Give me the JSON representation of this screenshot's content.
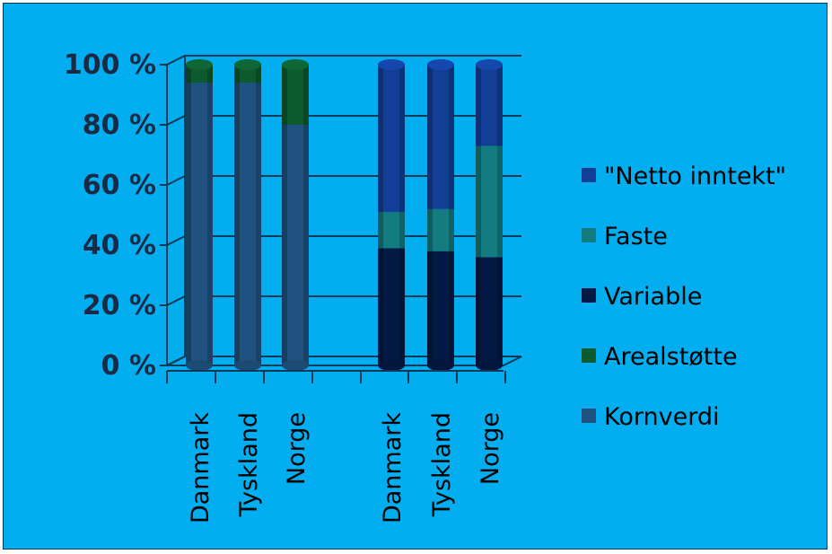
{
  "chart_data": {
    "type": "bar",
    "stacked": true,
    "percent": true,
    "categories": [
      "Danmark",
      "Tyskland",
      "Norge",
      "Danmark",
      "Tyskland",
      "Norge"
    ],
    "groups": [
      {
        "categories": [
          "Danmark",
          "Tyskland",
          "Norge"
        ]
      },
      {
        "categories": [
          "Danmark",
          "Tyskland",
          "Norge"
        ]
      }
    ],
    "series": [
      {
        "name": "Kornverdi",
        "color": "#1F5280",
        "values": [
          94,
          94,
          80,
          0,
          0,
          0
        ]
      },
      {
        "name": "Arealstøtte",
        "color": "#0D5A2E",
        "values": [
          6,
          6,
          20,
          0,
          0,
          0
        ]
      },
      {
        "name": "Variable",
        "color": "#031A45",
        "values": [
          0,
          0,
          0,
          39,
          38,
          36
        ]
      },
      {
        "name": "Faste",
        "color": "#137C80",
        "values": [
          0,
          0,
          0,
          12,
          14,
          37
        ]
      },
      {
        "name": "\"Netto inntekt\"",
        "color": "#123E96",
        "values": [
          0,
          0,
          0,
          49,
          48,
          27
        ]
      }
    ],
    "legend_order": [
      "\"Netto inntekt\"",
      "Faste",
      "Variable",
      "Arealstøtte",
      "Kornverdi"
    ],
    "y_ticks": [
      "0 %",
      "20 %",
      "40 %",
      "60 %",
      "80 %",
      "100 %"
    ],
    "ylim": [
      0,
      100
    ],
    "grid": true,
    "legend_position": "right",
    "title": "",
    "xlabel": "",
    "ylabel": ""
  }
}
